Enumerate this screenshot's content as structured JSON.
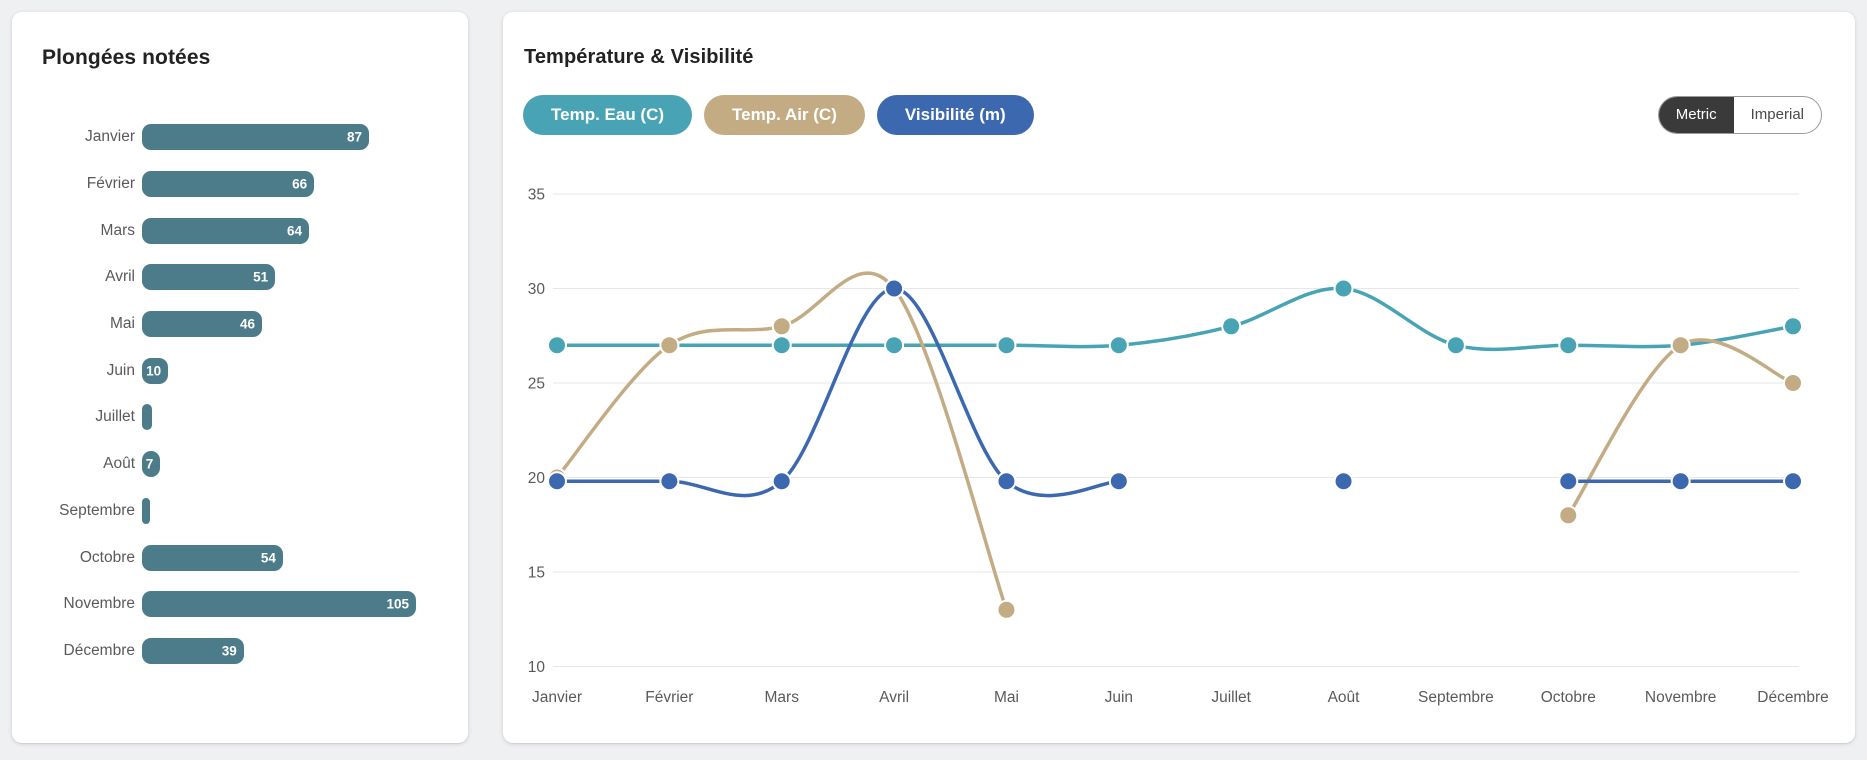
{
  "page": {
    "background": "#eff0f1"
  },
  "left_card": {
    "title": "Plongées notées",
    "chart_data": {
      "type": "bar",
      "orientation": "horizontal",
      "title": "Plongées notées",
      "categories": [
        "Janvier",
        "Février",
        "Mars",
        "Avril",
        "Mai",
        "Juin",
        "Juillet",
        "Août",
        "Septembre",
        "Octobre",
        "Novembre",
        "Décembre"
      ],
      "values": [
        87,
        66,
        64,
        51,
        46,
        10,
        4,
        7,
        3,
        54,
        105,
        39
      ],
      "value_labels_visible": [
        87,
        66,
        64,
        51,
        46,
        10,
        7,
        54,
        105,
        39
      ],
      "bar_color": "#4c7c8a",
      "label_color": "#5a5a5a",
      "value_label_color": "#ffffff",
      "xlim": [
        0,
        105
      ],
      "grid": "off"
    }
  },
  "right_card": {
    "title": "Température & Visibilité",
    "legend": [
      {
        "label": "Temp. Eau (C)",
        "color": "#48a4b5"
      },
      {
        "label": "Temp. Air (C)",
        "color": "#c3ab83"
      },
      {
        "label": "Visibilité (m)",
        "color": "#3c68b0"
      }
    ],
    "unit_toggle": {
      "options": [
        "Metric",
        "Imperial"
      ],
      "selected": "Metric",
      "selected_bg": "#3a3a3a",
      "selected_text": "#ffffff",
      "unselected_text": "#4a4a4a"
    },
    "chart_data": {
      "type": "line",
      "title": "Température & Visibilité",
      "x": [
        "Janvier",
        "Février",
        "Mars",
        "Avril",
        "Mai",
        "Juin",
        "Juillet",
        "Août",
        "Septembre",
        "Octobre",
        "Novembre",
        "Décembre"
      ],
      "series": [
        {
          "name": "Temp. Eau (C)",
          "color": "#48a4b5",
          "values": [
            27,
            27,
            27,
            27,
            27,
            27,
            28,
            30,
            27,
            27,
            27,
            28
          ]
        },
        {
          "name": "Temp. Air (C)",
          "color": "#c3ab83",
          "values": [
            20,
            27,
            28,
            30,
            13,
            null,
            null,
            null,
            null,
            18,
            27,
            25
          ]
        },
        {
          "name": "Visibilité (m)",
          "color": "#3c68b0",
          "values": [
            19.8,
            19.8,
            19.8,
            30,
            19.8,
            19.8,
            null,
            19.8,
            null,
            19.8,
            19.8,
            19.8
          ]
        }
      ],
      "y_ticks": [
        10,
        15,
        20,
        25,
        30,
        35
      ],
      "ylim": [
        10,
        35
      ],
      "grid": "horizontal",
      "grid_color": "#e6e7e9",
      "axis_text_color": "#5a5a5a",
      "legend_position": "top",
      "smooth": true
    }
  }
}
